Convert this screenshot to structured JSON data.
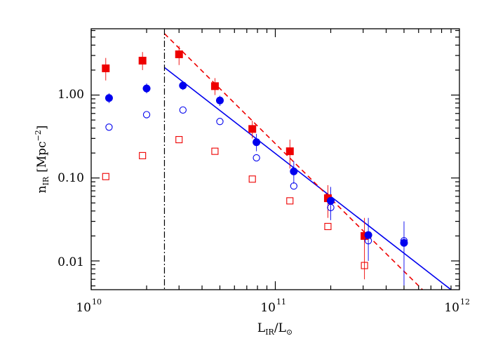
{
  "chart_data": {
    "type": "scatter",
    "xscale": "log",
    "yscale": "log",
    "xlim": [
      10000000000.0,
      1000000000000.0
    ],
    "ylim": [
      0.0045,
      6.3
    ],
    "x_ticks": [
      {
        "value": 10000000000.0,
        "base": "10",
        "exp": "10"
      },
      {
        "value": 100000000000.0,
        "base": "10",
        "exp": "11"
      },
      {
        "value": 1000000000000.0,
        "base": "10",
        "exp": "12"
      }
    ],
    "y_ticks": [
      {
        "value": 1.0,
        "label": "1.00"
      },
      {
        "value": 0.1,
        "label": "0.10"
      },
      {
        "value": 0.01,
        "label": "0.01"
      }
    ],
    "xlabel": {
      "main": "L",
      "sub1": "IR",
      "slash": "/L",
      "sub2": "⊙"
    },
    "ylabel": {
      "main": "n",
      "sub": "IR",
      "unit": "[Mpc",
      "sup": "−2",
      "close": "]"
    },
    "vertical_line": {
      "x": 25000000000.0,
      "style": "dash-dot",
      "color": "#000000"
    },
    "series": [
      {
        "marker": "filled-square",
        "color": "#ee0000",
        "points": [
          {
            "x": 12000000000.0,
            "y": 2.1,
            "ylo": 1.5,
            "yhi": 2.8
          },
          {
            "x": 19000000000.0,
            "y": 2.6,
            "ylo": 2.0,
            "yhi": 3.3
          },
          {
            "x": 30000000000.0,
            "y": 3.1,
            "ylo": 2.3,
            "yhi": 3.9
          },
          {
            "x": 47000000000.0,
            "y": 1.28,
            "ylo": 1.0,
            "yhi": 1.6
          },
          {
            "x": 75000000000.0,
            "y": 0.39,
            "ylo": 0.3,
            "yhi": 0.49
          },
          {
            "x": 120000000000.0,
            "y": 0.21,
            "ylo": 0.13,
            "yhi": 0.29
          },
          {
            "x": 193000000000.0,
            "y": 0.057,
            "ylo": 0.033,
            "yhi": 0.082
          },
          {
            "x": 305000000000.0,
            "y": 0.02,
            "ylo": 0.006,
            "yhi": 0.033
          }
        ]
      },
      {
        "marker": "filled-circle",
        "color": "#0000ee",
        "points": [
          {
            "x": 12500000000.0,
            "y": 0.92,
            "ylo": 0.8,
            "yhi": 1.05
          },
          {
            "x": 20000000000.0,
            "y": 1.2,
            "ylo": 1.05,
            "yhi": 1.38
          },
          {
            "x": 31500000000.0,
            "y": 1.3,
            "ylo": 1.15,
            "yhi": 1.45
          },
          {
            "x": 50000000000.0,
            "y": 0.86,
            "ylo": 0.74,
            "yhi": 0.98
          },
          {
            "x": 79000000000.0,
            "y": 0.27,
            "ylo": 0.21,
            "yhi": 0.34
          },
          {
            "x": 126000000000.0,
            "y": 0.12,
            "ylo": 0.085,
            "yhi": 0.16
          },
          {
            "x": 200000000000.0,
            "y": 0.053,
            "ylo": 0.031,
            "yhi": 0.078
          },
          {
            "x": 320000000000.0,
            "y": 0.0205,
            "ylo": 0.01,
            "yhi": 0.033
          },
          {
            "x": 500000000000.0,
            "y": 0.0165,
            "ylo": 0.0045,
            "yhi": 0.03
          }
        ]
      },
      {
        "marker": "open-square",
        "color": "#ee0000",
        "points": [
          {
            "x": 12000000000.0,
            "y": 0.104
          },
          {
            "x": 19000000000.0,
            "y": 0.186
          },
          {
            "x": 30000000000.0,
            "y": 0.29
          },
          {
            "x": 47000000000.0,
            "y": 0.21
          },
          {
            "x": 75000000000.0,
            "y": 0.097
          },
          {
            "x": 120000000000.0,
            "y": 0.053
          },
          {
            "x": 193000000000.0,
            "y": 0.026
          },
          {
            "x": 305000000000.0,
            "y": 0.0088
          }
        ]
      },
      {
        "marker": "open-circle",
        "color": "#0000ee",
        "points": [
          {
            "x": 12500000000.0,
            "y": 0.41
          },
          {
            "x": 20000000000.0,
            "y": 0.58
          },
          {
            "x": 31500000000.0,
            "y": 0.66
          },
          {
            "x": 50000000000.0,
            "y": 0.48
          },
          {
            "x": 79000000000.0,
            "y": 0.175
          },
          {
            "x": 126000000000.0,
            "y": 0.08
          },
          {
            "x": 200000000000.0,
            "y": 0.044
          },
          {
            "x": 320000000000.0,
            "y": 0.0175
          },
          {
            "x": 500000000000.0,
            "y": 0.0175
          }
        ]
      }
    ],
    "fit_lines": [
      {
        "color": "#0000ee",
        "style": "solid",
        "x1": 25000000000.0,
        "y1": 2.15,
        "x2": 900000000000.0,
        "y2": 0.0045
      },
      {
        "color": "#ee0000",
        "style": "dashed",
        "x1": 25000000000.0,
        "y1": 5.5,
        "x2": 630000000000.0,
        "y2": 0.0045
      }
    ]
  }
}
